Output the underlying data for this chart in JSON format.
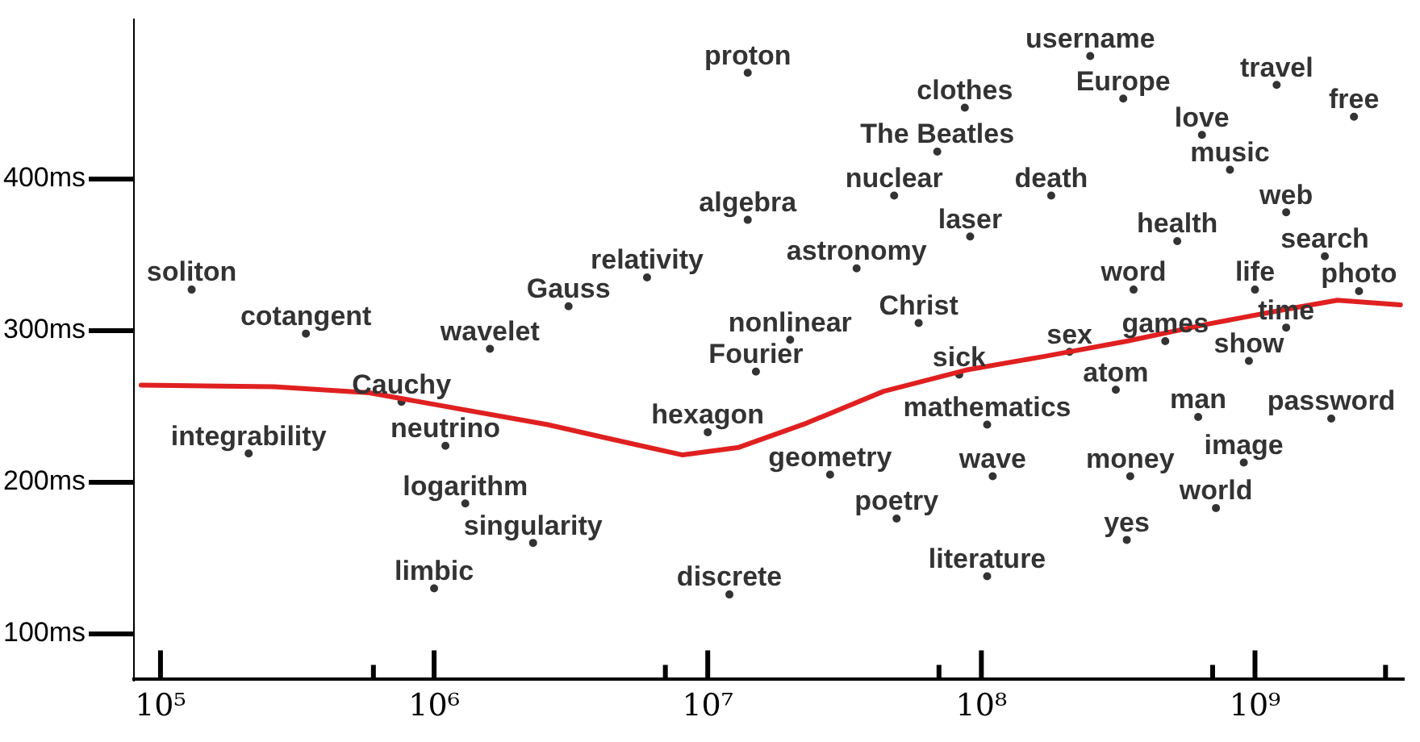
{
  "chart_data": {
    "type": "scatter",
    "log": "x",
    "grid": false,
    "legend": false,
    "xlim": [
      80000,
      3500000000
    ],
    "xticks": [
      {
        "value": 100000,
        "label": "10⁵"
      },
      {
        "value": 600000,
        "label": null
      },
      {
        "value": 1000000,
        "label": "10⁶"
      },
      {
        "value": 7000000,
        "label": null
      },
      {
        "value": 10000000,
        "label": "10⁷"
      },
      {
        "value": 70000000,
        "label": null
      },
      {
        "value": 100000000,
        "label": "10⁸"
      },
      {
        "value": 700000000,
        "label": null
      },
      {
        "value": 1000000000,
        "label": "10⁹"
      },
      {
        "value": 3000000000,
        "label": null
      }
    ],
    "ylim": [
      70,
      505
    ],
    "yticks": [
      {
        "value": 100,
        "label": "100ms"
      },
      {
        "value": 200,
        "label": "200ms"
      },
      {
        "value": 300,
        "label": "300ms"
      },
      {
        "value": 400,
        "label": "400ms"
      }
    ],
    "series": [
      {
        "type": "line",
        "line_style": "solid",
        "marker": "none",
        "color": "#e02020",
        "x": [
          85000,
          260000,
          580000,
          1100000,
          2600000,
          5100000,
          8100000,
          13000000,
          23000000,
          44000000,
          88000000,
          170000000,
          340000000,
          660000000,
          1300000000,
          2000000000,
          3400000000
        ],
        "values": [
          264,
          263,
          259,
          250,
          238,
          226,
          218,
          223,
          239,
          260,
          274,
          283,
          293,
          304,
          314,
          320,
          317
        ]
      },
      {
        "color": "#333333",
        "marker": "circle",
        "x": [
          14000000,
          250000000,
          87000000,
          330000000,
          1200000000,
          2300000000,
          69000000,
          640000000,
          810000000,
          48000000,
          180000000,
          14000000,
          91000000,
          1300000000,
          520000000,
          35000000,
          1800000000,
          6000000,
          130000,
          360000000,
          1000000000,
          2400000000,
          3100000,
          59000000,
          340000,
          20000000,
          1300000000,
          1600000,
          470000000,
          210000000,
          950000000,
          15000000,
          83000000,
          310000000,
          760000,
          620000000,
          1900000000,
          10000000,
          105000000,
          210000,
          1100000,
          910000000,
          28000000,
          110000000,
          350000000,
          1300000,
          720000000,
          49000000,
          2300000,
          340000000,
          105000000,
          1000000,
          12000000
        ],
        "values": [
          470,
          481,
          447,
          453,
          462,
          441,
          418,
          429,
          406,
          389,
          389,
          373,
          362,
          378,
          359,
          341,
          349,
          335,
          327,
          327,
          327,
          326,
          316,
          305,
          298,
          294,
          302,
          288,
          293,
          286,
          280,
          273,
          271,
          261,
          253,
          243,
          242,
          233,
          238,
          219,
          224,
          213,
          205,
          204,
          204,
          186,
          183,
          176,
          160,
          162,
          138,
          130,
          126
        ],
        "value_labels": [
          "proton",
          "username",
          "clothes",
          "Europe",
          "travel",
          "free",
          "The Beatles",
          "love",
          "music",
          "nuclear",
          "death",
          "algebra",
          "laser",
          "web",
          "health",
          "astronomy",
          "search",
          "relativity",
          "soliton",
          "word",
          "life",
          "photo",
          "Gauss",
          "Christ",
          "cotangent",
          "nonlinear",
          "time",
          "wavelet",
          "games",
          "sex",
          "show",
          "Fourier",
          "sick",
          "atom",
          "Cauchy",
          "man",
          "password",
          "hexagon",
          "mathematics",
          "integrability",
          "neutrino",
          "image",
          "geometry",
          "wave",
          "money",
          "logarithm",
          "world",
          "poetry",
          "singularity",
          "yes",
          "literature",
          "limbic",
          "discrete"
        ]
      }
    ]
  }
}
